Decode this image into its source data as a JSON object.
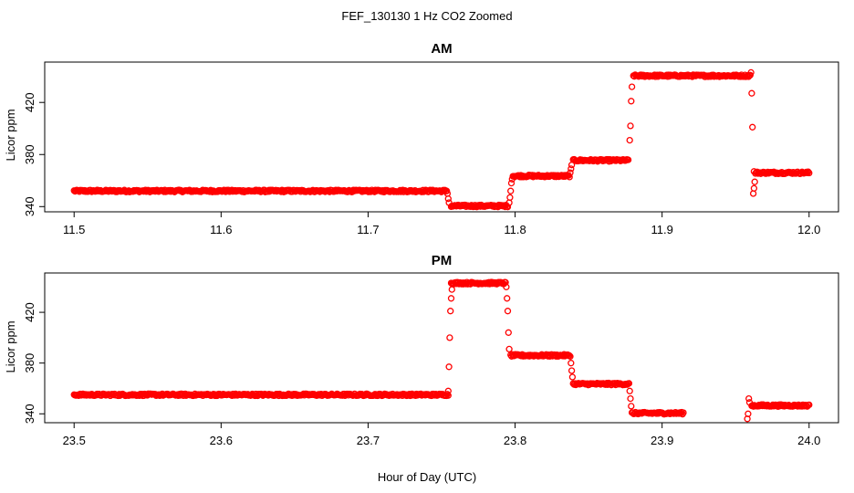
{
  "figure": {
    "title": "FEF_130130  1 Hz CO2 Zoomed",
    "xlabel": "Hour of Day (UTC)",
    "point_color": "#ff0000"
  },
  "chart_data": [
    {
      "type": "scatter",
      "title": "AM",
      "ylabel": "Licor ppm",
      "xlim": [
        11.48,
        12.02
      ],
      "ylim": [
        336,
        451
      ],
      "xticks": [
        11.5,
        11.6,
        11.7,
        11.8,
        11.9,
        12.0
      ],
      "xtick_labels": [
        "11.5",
        "11.6",
        "11.7",
        "11.8",
        "11.9",
        "12.0"
      ],
      "yticks": [
        340,
        380,
        420
      ],
      "ytick_labels": [
        "340",
        "380",
        "420"
      ],
      "grid": false,
      "series": [
        {
          "marker": "open-circle",
          "color": "#ff0000",
          "segments": [
            {
              "x": [
                11.5,
                11.7535
              ],
              "y": 352
            },
            {
              "x": [
                11.7565,
                11.795
              ],
              "y": 340.5
            },
            {
              "x": [
                11.7985,
                11.837
              ],
              "y": 363.5
            },
            {
              "x": [
                11.8395,
                11.877
              ],
              "y": 375.5
            },
            {
              "x": [
                11.8805,
                11.96
              ],
              "y": 440.5
            },
            {
              "x": [
                11.9635,
                12.0
              ],
              "y": 366
            }
          ],
          "transition_points": [
            [
              11.754,
              350
            ],
            [
              11.7545,
              346
            ],
            [
              11.755,
              343
            ],
            [
              11.796,
              343
            ],
            [
              11.7965,
              347
            ],
            [
              11.797,
              352
            ],
            [
              11.7975,
              358
            ],
            [
              11.798,
              361
            ],
            [
              11.8375,
              366
            ],
            [
              11.838,
              369
            ],
            [
              11.8385,
              372
            ],
            [
              11.878,
              391
            ],
            [
              11.8785,
              402
            ],
            [
              11.879,
              421
            ],
            [
              11.8795,
              432
            ],
            [
              11.9605,
              443
            ],
            [
              11.961,
              427
            ],
            [
              11.9615,
              401
            ],
            [
              11.9625,
              367
            ],
            [
              11.963,
              359
            ],
            [
              11.9625,
              354
            ],
            [
              11.962,
              350
            ]
          ]
        }
      ]
    },
    {
      "type": "scatter",
      "title": "PM",
      "ylabel": "Licor ppm",
      "xlim": [
        23.48,
        24.02
      ],
      "ylim": [
        333,
        451
      ],
      "xticks": [
        23.5,
        23.6,
        23.7,
        23.8,
        23.9,
        24.0
      ],
      "xtick_labels": [
        "23.5",
        "23.6",
        "23.7",
        "23.8",
        "23.9",
        "24.0"
      ],
      "yticks": [
        340,
        380,
        420
      ],
      "ytick_labels": [
        "340",
        "380",
        "420"
      ],
      "grid": false,
      "series": [
        {
          "marker": "open-circle",
          "color": "#ff0000",
          "segments": [
            {
              "x": [
                23.5,
                23.7545
              ],
              "y": 355
            },
            {
              "x": [
                23.7565,
                23.7935
              ],
              "y": 443
            },
            {
              "x": [
                23.797,
                23.8375
              ],
              "y": 386
            },
            {
              "x": [
                23.8395,
                23.8775
              ],
              "y": 363.5
            },
            {
              "x": [
                23.8795,
                23.9145
              ],
              "y": 340.5
            },
            {
              "x": [
                23.961,
                24.0
              ],
              "y": 346.5
            }
          ],
          "transition_points": [
            [
              23.7545,
              358
            ],
            [
              23.755,
              377
            ],
            [
              23.7555,
              400
            ],
            [
              23.756,
              421
            ],
            [
              23.7565,
              431
            ],
            [
              23.757,
              438
            ],
            [
              23.794,
              440
            ],
            [
              23.7945,
              431
            ],
            [
              23.795,
              421
            ],
            [
              23.7955,
              404
            ],
            [
              23.796,
              391
            ],
            [
              23.838,
              380
            ],
            [
              23.8385,
              374
            ],
            [
              23.839,
              369
            ],
            [
              23.878,
              358
            ],
            [
              23.8785,
              352
            ],
            [
              23.879,
              346
            ],
            [
              23.959,
              352
            ],
            [
              23.9595,
              349
            ],
            [
              23.9585,
              340
            ],
            [
              23.958,
              336
            ]
          ]
        }
      ]
    }
  ]
}
